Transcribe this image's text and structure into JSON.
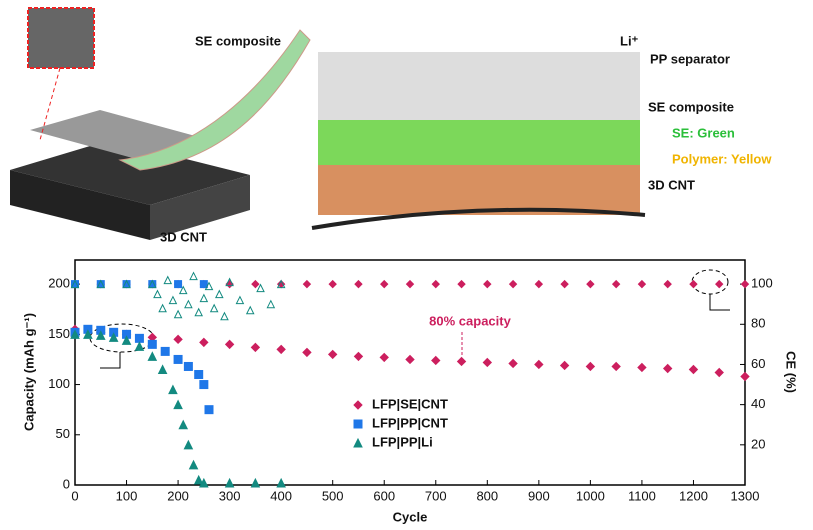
{
  "diagram": {
    "left_labels": [
      "SE composite",
      "3D CNT"
    ],
    "right_labels": [
      "Li⁺",
      "PP separator",
      "SE composite",
      "SE: Green",
      "Polymer: Yellow",
      "3D CNT"
    ]
  },
  "chart_data": {
    "type": "scatter",
    "xlabel": "Cycle",
    "ylabel": "Capacity (mAh g⁻¹)",
    "y2label": "CE (%)",
    "annotation": "80% capacity",
    "xlim": [
      0,
      1300
    ],
    "xticks": [
      0,
      100,
      200,
      300,
      400,
      500,
      600,
      700,
      800,
      900,
      1000,
      1100,
      1200,
      1300
    ],
    "ylim": [
      0,
      224
    ],
    "yticks": [
      0,
      50,
      100,
      150,
      200
    ],
    "y2lim": [
      0,
      112
    ],
    "y2ticks": [
      20,
      40,
      60,
      80,
      100
    ],
    "legend": "lower-center",
    "series": [
      {
        "name": "LFP|SE|CNT",
        "color": "#cc1f5e",
        "marker": "diamond",
        "x": [
          0,
          50,
          100,
          150,
          200,
          250,
          300,
          350,
          400,
          450,
          500,
          550,
          600,
          650,
          700,
          750,
          800,
          850,
          900,
          950,
          1000,
          1050,
          1100,
          1150,
          1200,
          1250,
          1300
        ],
        "values": [
          155,
          152,
          150,
          147,
          145,
          142,
          140,
          137,
          135,
          132,
          130,
          128,
          127,
          125,
          124,
          123,
          122,
          121,
          120,
          119,
          118,
          118,
          117,
          116,
          115,
          112,
          108
        ],
        "ce_x": [
          0,
          50,
          100,
          150,
          200,
          250,
          300,
          350,
          400,
          450,
          500,
          550,
          600,
          650,
          700,
          750,
          800,
          850,
          900,
          950,
          1000,
          1050,
          1100,
          1150,
          1200,
          1250,
          1300
        ],
        "ce_values": [
          100,
          100,
          100,
          100,
          100,
          100,
          100,
          100,
          100,
          100,
          100,
          100,
          100,
          100,
          100,
          100,
          100,
          100,
          100,
          100,
          100,
          100,
          100,
          100,
          100,
          100,
          100
        ]
      },
      {
        "name": "LFP|PP|CNT",
        "color": "#1f77e8",
        "marker": "square",
        "x": [
          0,
          25,
          50,
          75,
          100,
          125,
          150,
          175,
          200,
          220,
          240,
          250,
          260
        ],
        "values": [
          152,
          155,
          154,
          152,
          150,
          146,
          140,
          133,
          125,
          118,
          110,
          100,
          75
        ],
        "ce_x": [
          0,
          50,
          100,
          150,
          200,
          250
        ],
        "ce_values": [
          100,
          100,
          100,
          100,
          100,
          100
        ]
      },
      {
        "name": "LFP|PP|Li",
        "color": "#138a80",
        "marker": "triangle",
        "x": [
          0,
          25,
          50,
          75,
          100,
          125,
          150,
          170,
          190,
          200,
          210,
          220,
          230,
          240,
          250,
          300,
          350,
          400
        ],
        "values": [
          150,
          150,
          149,
          147,
          144,
          138,
          128,
          115,
          95,
          80,
          60,
          40,
          20,
          5,
          2,
          2,
          2,
          2
        ],
        "ce_x": [
          0,
          50,
          100,
          150,
          160,
          170,
          180,
          190,
          200,
          210,
          220,
          230,
          240,
          250,
          260,
          270,
          280,
          290,
          300,
          320,
          340,
          360,
          380,
          400
        ],
        "ce_values": [
          100,
          100,
          100,
          100,
          95,
          88,
          102,
          92,
          85,
          97,
          90,
          104,
          86,
          93,
          99,
          88,
          95,
          84,
          101,
          92,
          87,
          98,
          90,
          100
        ]
      }
    ]
  }
}
